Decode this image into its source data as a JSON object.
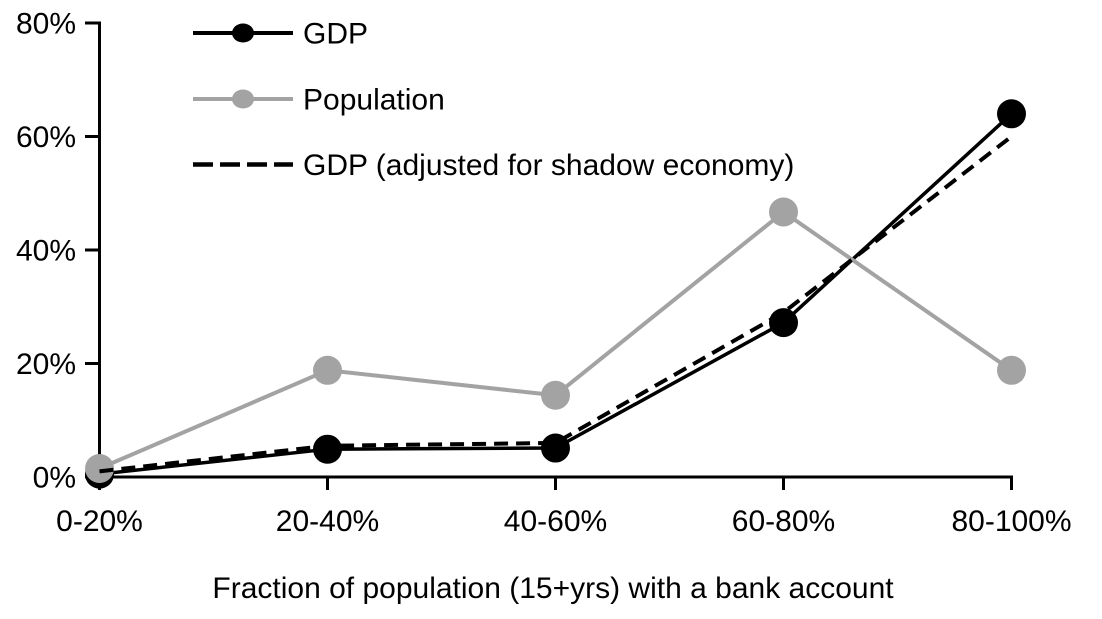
{
  "chart_data": {
    "type": "line",
    "title": "",
    "xlabel": "Fraction of population (15+yrs) with a bank account",
    "ylabel": "",
    "categories": [
      "0-20%",
      "20-40%",
      "40-60%",
      "60-80%",
      "80-100%"
    ],
    "ylim": [
      0,
      80
    ],
    "yticks": [
      0,
      20,
      40,
      60,
      80
    ],
    "ytick_labels": [
      "0%",
      "20%",
      "40%",
      "60%",
      "80%"
    ],
    "grid": false,
    "legend_position": "inside-top-left",
    "series": [
      {
        "name": "GDP",
        "values": [
          0.5,
          4.9,
          5.1,
          27.2,
          64.0
        ],
        "color": "#000000",
        "line_style": "solid",
        "marker": "circle"
      },
      {
        "name": "Population",
        "values": [
          1.5,
          18.8,
          14.4,
          46.7,
          18.8
        ],
        "color": "#a3a3a3",
        "line_style": "solid",
        "marker": "circle"
      },
      {
        "name": "GDP (adjusted for shadow economy)",
        "values": [
          1.0,
          5.5,
          6.0,
          29.0,
          60.0
        ],
        "color": "#000000",
        "line_style": "dashed",
        "marker": "none"
      }
    ]
  },
  "colors": {
    "background": "#ffffff",
    "axis": "#000000",
    "text": "#000000"
  }
}
